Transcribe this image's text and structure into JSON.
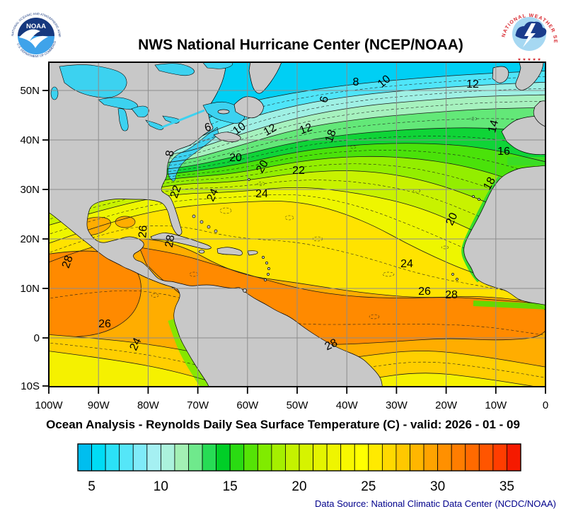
{
  "header": {
    "title": "NWS National Hurricane Center (NCEP/NOAA)"
  },
  "noaa_logo": {
    "text": "NOAA",
    "ring_top": "NATIONAL OCEANIC AND ATMOSPHERIC ADMINISTRATION",
    "ring_bottom": "U.S. DEPARTMENT OF COMMERCE"
  },
  "nws_logo": {
    "ring_text": "NATIONAL WEATHER SERVICE",
    "stars": "★ ★ ★ ★ ★"
  },
  "caption": "Ocean Analysis - Reynolds Daily Sea Surface Temperature (C) - valid: 2026 - 01 - 09",
  "footer": {
    "data_source": "Data Source: National Climatic Data Center (NCDC/NOAA)"
  },
  "chart_data": {
    "type": "heatmap",
    "title": "NWS National Hurricane Center (NCEP/NOAA)",
    "subtitle": "Ocean Analysis - Reynolds Daily Sea Surface Temperature (C) - valid: 2026 - 01 - 09",
    "variable": "Reynolds Daily Sea Surface Temperature",
    "units": "C",
    "valid_date": "2026 - 01 - 09",
    "x_ticks": [
      "100W",
      "90W",
      "80W",
      "70W",
      "60W",
      "50W",
      "40W",
      "30W",
      "20W",
      "10W",
      "0"
    ],
    "y_ticks": [
      "50N",
      "40N",
      "30N",
      "20N",
      "10N",
      "0",
      "10S"
    ],
    "contour_interval": 1,
    "labeled_levels": [
      6,
      8,
      10,
      12,
      14,
      16,
      18,
      20,
      22,
      24,
      26,
      28
    ],
    "contour_labels": [
      {
        "v": "6",
        "x": 226,
        "y": 97,
        "r": -15
      },
      {
        "v": "10",
        "x": 272,
        "y": 98,
        "r": -35
      },
      {
        "v": "12",
        "x": 315,
        "y": 100,
        "r": -30
      },
      {
        "v": "8",
        "x": 176,
        "y": 130,
        "r": -80
      },
      {
        "v": "6",
        "x": 394,
        "y": 54,
        "r": -75
      },
      {
        "v": "8",
        "x": 434,
        "y": 33,
        "r": 0
      },
      {
        "v": "10",
        "x": 477,
        "y": 31,
        "r": -40
      },
      {
        "v": "12",
        "x": 599,
        "y": 36,
        "r": 0
      },
      {
        "v": "12",
        "x": 365,
        "y": 99,
        "r": -20
      },
      {
        "v": "18",
        "x": 403,
        "y": 106,
        "r": -70
      },
      {
        "v": "14",
        "x": 633,
        "y": 92,
        "r": -75
      },
      {
        "v": "16",
        "x": 643,
        "y": 131,
        "r": 0
      },
      {
        "v": "18",
        "x": 627,
        "y": 174,
        "r": -60
      },
      {
        "v": "20",
        "x": 574,
        "y": 224,
        "r": -65
      },
      {
        "v": "20",
        "x": 264,
        "y": 140,
        "r": 0
      },
      {
        "v": "20",
        "x": 306,
        "y": 150,
        "r": -60
      },
      {
        "v": "22",
        "x": 353,
        "y": 158,
        "r": 0
      },
      {
        "v": "22",
        "x": 184,
        "y": 185,
        "r": -70
      },
      {
        "v": "24",
        "x": 236,
        "y": 190,
        "r": -65
      },
      {
        "v": "24",
        "x": 301,
        "y": 191,
        "r": 0
      },
      {
        "v": "26",
        "x": 138,
        "y": 240,
        "r": -85
      },
      {
        "v": "28",
        "x": 176,
        "y": 254,
        "r": -80
      },
      {
        "v": "28",
        "x": 31,
        "y": 284,
        "r": -70
      },
      {
        "v": "24",
        "x": 506,
        "y": 290,
        "r": 0
      },
      {
        "v": "26",
        "x": 531,
        "y": 329,
        "r": 0
      },
      {
        "v": "28",
        "x": 569,
        "y": 334,
        "r": 0
      },
      {
        "v": "28",
        "x": 401,
        "y": 404,
        "r": -25
      },
      {
        "v": "26",
        "x": 79,
        "y": 375,
        "r": 0
      },
      {
        "v": "24",
        "x": 127,
        "y": 401,
        "r": -65
      }
    ],
    "colorbar": {
      "min": 4,
      "max": 36,
      "ticks": [
        5,
        10,
        15,
        20,
        25,
        30,
        35
      ],
      "colors": [
        "#00BEEF",
        "#00DCF5",
        "#2BE1F7",
        "#55E6F8",
        "#7FEBF9",
        "#A5F0F2",
        "#ABF2DC",
        "#A3F0B4",
        "#6FE98C",
        "#27DC55",
        "#00CE27",
        "#2ADB12",
        "#55E306",
        "#80EB00",
        "#A5EF00",
        "#C4F200",
        "#D6F300",
        "#E4F400",
        "#EFF500",
        "#F8F800",
        "#FFFF00",
        "#FFEA00",
        "#FFD900",
        "#FFC800",
        "#FFB600",
        "#FFA300",
        "#FF9000",
        "#FF7D00",
        "#FF6A00",
        "#FF5500",
        "#FF3D00",
        "#F51A00"
      ]
    },
    "palette": {
      "base": "#00CFF4",
      "bands": [
        "#4FE5F8",
        "#9FF0E4",
        "#A6F1BE",
        "#63E878",
        "#0FD437",
        "#4AE20A",
        "#93EE00",
        "#C8F200",
        "#EEF600",
        "#FFE300",
        "#FFAD00"
      ],
      "warm_core": "#FF8A00",
      "south_band_26": "#FFCF00",
      "south_band_24": "#F5F100",
      "upwelling_green": "#2FD830",
      "land": "#C8C8C8",
      "water_cold": "#3CD2F0",
      "grid": "#8C8C8C",
      "contour": "#1A1A1A",
      "axis": "#000000"
    }
  }
}
